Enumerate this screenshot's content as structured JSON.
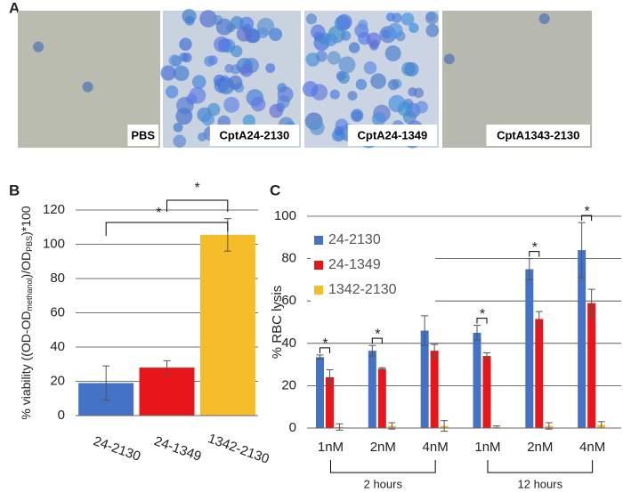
{
  "panel_labels": [
    "A",
    "B",
    "C"
  ],
  "images": [
    {
      "label": "PBS"
    },
    {
      "label": "CptA24-2130"
    },
    {
      "label": "CptA24-1349"
    },
    {
      "label": "CptA1343-2130"
    }
  ],
  "chart_data": [
    {
      "type": "bar",
      "y_label": [
        "% viability ((OD-OD",
        "methanol",
        ")/OD",
        "PBS",
        ")*100"
      ],
      "categories": [
        "24-2130",
        "24-1349",
        "1342-2130"
      ],
      "values": [
        19,
        28,
        105.5
      ],
      "errors": [
        10,
        4,
        9.5
      ],
      "colors": [
        "#4472c4",
        "#e8161b",
        "#f5bd2a"
      ],
      "ylim": [
        0,
        120
      ],
      "yticks": [
        0,
        20,
        40,
        60,
        80,
        100,
        120
      ],
      "grid": true,
      "annotations": [
        "*",
        "*"
      ]
    },
    {
      "type": "grouped_bar",
      "y_label": "% RBC lysis",
      "categories": [
        "1nM",
        "2nM",
        "4nM",
        "1nM",
        "2nM",
        "4nM"
      ],
      "groups": [
        "2 hours",
        "12 hours"
      ],
      "series": [
        {
          "name": "24-2130",
          "color": "#4472c4",
          "values": [
            33.5,
            36.5,
            46,
            45,
            75,
            84
          ],
          "errors": [
            1,
            2.5,
            7,
            3.5,
            5,
            13
          ]
        },
        {
          "name": "24-1349",
          "color": "#e8161b",
          "values": [
            24,
            28,
            36.5,
            34,
            51.5,
            59
          ],
          "errors": [
            3.5,
            0.5,
            3,
            1.5,
            3.5,
            6.5
          ]
        },
        {
          "name": "1342-2130",
          "color": "#f5bd2a",
          "values": [
            0.5,
            1,
            1,
            0.5,
            1,
            1.5
          ],
          "errors": [
            1.5,
            1.5,
            2.5,
            0.5,
            1.5,
            1.5
          ]
        }
      ],
      "ylim": [
        0,
        100
      ],
      "yticks": [
        0,
        20,
        40,
        60,
        80,
        100
      ],
      "grid": true,
      "legend": "upper-left",
      "annotations": [
        "*",
        "*",
        "*",
        "*",
        "*"
      ]
    }
  ]
}
